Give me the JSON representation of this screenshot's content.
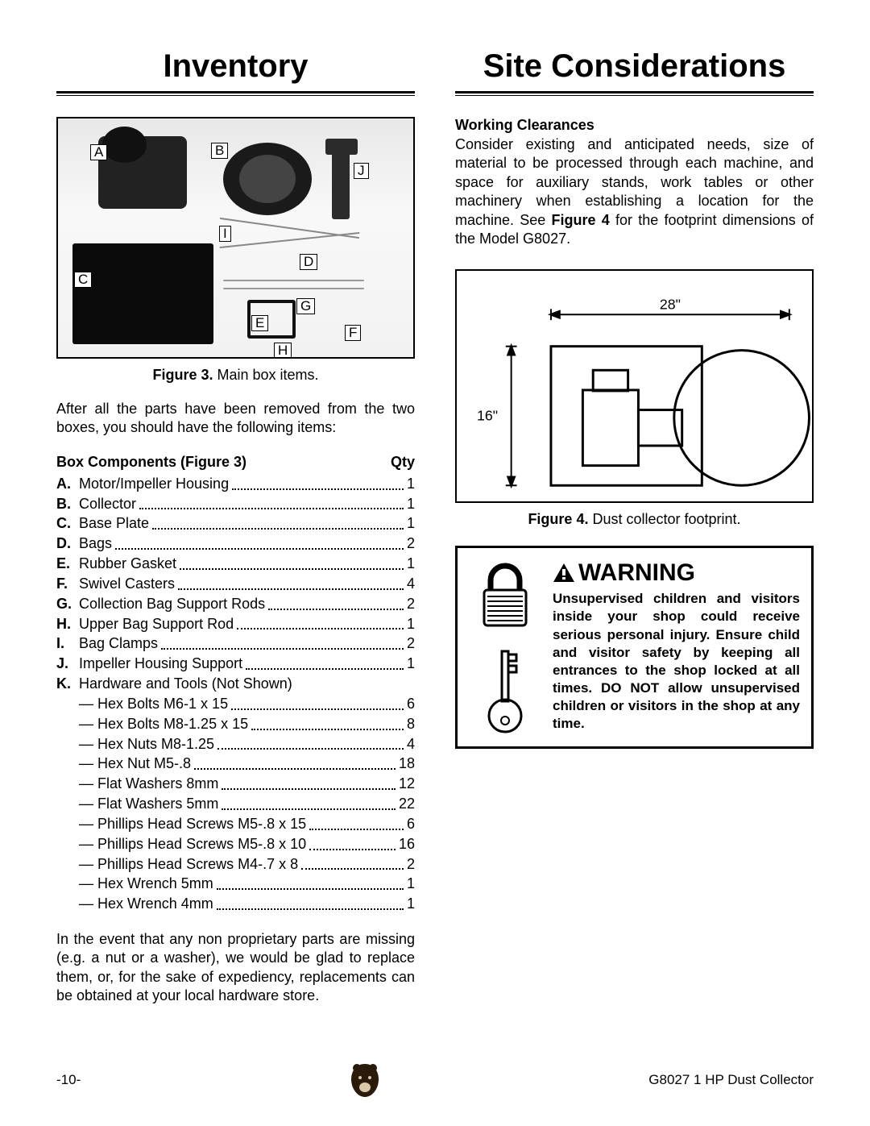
{
  "left": {
    "title": "Inventory",
    "figure3": {
      "caption_bold": "Figure 3.",
      "caption_rest": " Main box items.",
      "labels": {
        "A": "A",
        "B": "B",
        "C": "C",
        "D": "D",
        "E": "E",
        "F": "F",
        "G": "G",
        "H": "H",
        "I": "I",
        "J": "J"
      }
    },
    "intro": "After all the parts have been removed from the two boxes, you should have the following items:",
    "list_header_left": "Box Components (Figure 3)",
    "list_header_right": "Qty",
    "items": [
      {
        "l": "A.",
        "n": "Motor/Impeller Housing",
        "q": "1"
      },
      {
        "l": "B.",
        "n": "Collector",
        "q": "1"
      },
      {
        "l": "C.",
        "n": "Base Plate",
        "q": "1"
      },
      {
        "l": "D.",
        "n": "Bags",
        "q": "2"
      },
      {
        "l": "E.",
        "n": "Rubber Gasket",
        "q": "1"
      },
      {
        "l": "F.",
        "n": "Swivel Casters",
        "q": "4"
      },
      {
        "l": "G.",
        "n": "Collection Bag Support Rods",
        "q": "2"
      },
      {
        "l": "H.",
        "n": "Upper Bag Support Rod",
        "q": "1"
      },
      {
        "l": "I.",
        "n": "Bag Clamps",
        "q": "2"
      },
      {
        "l": "J.",
        "n": "Impeller Housing Support",
        "q": "1"
      }
    ],
    "k_label": "K.",
    "k_text": "Hardware and Tools (Not Shown)",
    "hardware": [
      {
        "n": "Hex Bolts M6-1 x 15",
        "q": "6"
      },
      {
        "n": "Hex Bolts M8-1.25 x 15",
        "q": "8"
      },
      {
        "n": "Hex Nuts M8-1.25",
        "q": "4"
      },
      {
        "n": "Hex Nut M5-.8",
        "q": "18"
      },
      {
        "n": "Flat Washers 8mm",
        "q": "12"
      },
      {
        "n": "Flat Washers 5mm",
        "q": "22"
      },
      {
        "n": "Phillips Head Screws M5-.8 x 15",
        "q": "6"
      },
      {
        "n": "Phillips Head Screws M5-.8 x 10",
        "q": "16"
      },
      {
        "n": "Phillips Head Screws M4-.7 x 8",
        "q": "2"
      },
      {
        "n": "Hex Wrench 5mm",
        "q": "1"
      },
      {
        "n": "Hex Wrench 4mm",
        "q": "1"
      }
    ],
    "outro": "In the event that any non proprietary parts are missing (e.g. a nut or a washer), we would be glad to replace them, or, for the sake of expediency, replacements can be obtained at your local hardware store."
  },
  "right": {
    "title": "Site Considerations",
    "wc_head": "Working Clearances",
    "wc_body": "Consider existing and anticipated needs, size of material to be processed through each machine, and space for auxiliary stands, work tables or other machinery when establishing a location for the machine. See Figure 4 for the footprint dimensions of the Model G8027.",
    "diagram": {
      "w": "28\"",
      "h": "16\""
    },
    "figure4": {
      "caption_bold": "Figure 4.",
      "caption_rest": " Dust collector footprint."
    },
    "warning": {
      "title": "WARNING",
      "body": "Unsupervised children and visitors inside your shop could receive serious personal injury. Ensure child and visitor safety by keeping all entrances to the shop locked at all times. DO NOT allow unsupervised children or visitors in the shop at any time."
    }
  },
  "footer": {
    "page": "-10-",
    "doc": "G8027 1 HP Dust Collector"
  }
}
